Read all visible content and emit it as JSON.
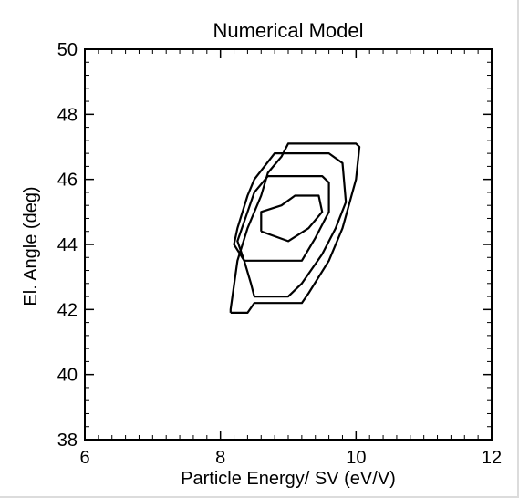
{
  "chart_data": {
    "type": "contour",
    "title": "Numerical Model",
    "xlabel": "Particle Energy/ SV (eV/V)",
    "ylabel": "El. Angle (deg)",
    "xlim": [
      6,
      12
    ],
    "ylim": [
      38,
      50
    ],
    "x_ticks": [
      "6",
      "8",
      "10",
      "12"
    ],
    "y_ticks": [
      "38",
      "40",
      "42",
      "44",
      "46",
      "48",
      "50"
    ],
    "grid": false,
    "series": [
      {
        "points": [
          [
            8.15,
            41.9
          ],
          [
            8.4,
            41.9
          ],
          [
            8.5,
            42.2
          ],
          [
            9.2,
            42.2
          ],
          [
            9.3,
            42.5
          ],
          [
            9.6,
            43.5
          ],
          [
            9.8,
            44.5
          ],
          [
            10.0,
            46.0
          ],
          [
            10.05,
            47.0
          ],
          [
            10.0,
            47.1
          ],
          [
            9.0,
            47.1
          ],
          [
            8.9,
            46.7
          ],
          [
            8.7,
            46.2
          ],
          [
            8.6,
            45.5
          ],
          [
            8.4,
            44.5
          ],
          [
            8.25,
            43.5
          ],
          [
            8.15,
            42.0
          ],
          [
            8.15,
            41.9
          ]
        ]
      },
      {
        "points": [
          [
            8.5,
            42.4
          ],
          [
            9.0,
            42.4
          ],
          [
            9.2,
            42.8
          ],
          [
            9.5,
            43.7
          ],
          [
            9.7,
            44.5
          ],
          [
            9.85,
            45.3
          ],
          [
            9.8,
            46.5
          ],
          [
            9.6,
            46.8
          ],
          [
            8.8,
            46.8
          ],
          [
            8.5,
            46.0
          ],
          [
            8.4,
            45.5
          ],
          [
            8.25,
            44.5
          ],
          [
            8.2,
            44.0
          ],
          [
            8.35,
            43.5
          ],
          [
            8.45,
            42.8
          ],
          [
            8.5,
            42.4
          ]
        ]
      },
      {
        "points": [
          [
            8.35,
            43.5
          ],
          [
            9.2,
            43.5
          ],
          [
            9.4,
            44.2
          ],
          [
            9.6,
            45.0
          ],
          [
            9.6,
            45.9
          ],
          [
            9.5,
            46.1
          ],
          [
            8.7,
            46.1
          ],
          [
            8.5,
            45.6
          ],
          [
            8.4,
            45.0
          ],
          [
            8.25,
            44.1
          ],
          [
            8.35,
            43.5
          ]
        ]
      },
      {
        "points": [
          [
            8.6,
            44.4
          ],
          [
            9.0,
            44.1
          ],
          [
            9.3,
            44.5
          ],
          [
            9.5,
            45.0
          ],
          [
            9.45,
            45.5
          ],
          [
            9.1,
            45.5
          ],
          [
            8.9,
            45.2
          ],
          [
            8.6,
            45.0
          ],
          [
            8.6,
            44.4
          ]
        ]
      }
    ]
  }
}
